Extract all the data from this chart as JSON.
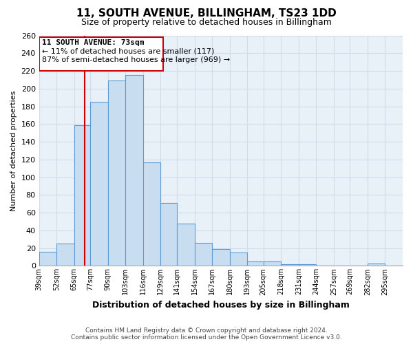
{
  "title": "11, SOUTH AVENUE, BILLINGHAM, TS23 1DD",
  "subtitle": "Size of property relative to detached houses in Billingham",
  "xlabel": "Distribution of detached houses by size in Billingham",
  "ylabel": "Number of detached properties",
  "bin_labels": [
    "39sqm",
    "52sqm",
    "65sqm",
    "77sqm",
    "90sqm",
    "103sqm",
    "116sqm",
    "129sqm",
    "141sqm",
    "154sqm",
    "167sqm",
    "180sqm",
    "193sqm",
    "205sqm",
    "218sqm",
    "231sqm",
    "244sqm",
    "257sqm",
    "269sqm",
    "282sqm",
    "295sqm"
  ],
  "bin_edges": [
    39,
    52,
    65,
    77,
    90,
    103,
    116,
    129,
    141,
    154,
    167,
    180,
    193,
    205,
    218,
    231,
    244,
    257,
    269,
    282,
    295
  ],
  "bar_heights": [
    16,
    25,
    159,
    185,
    209,
    215,
    117,
    71,
    48,
    26,
    19,
    15,
    5,
    5,
    2,
    2,
    0,
    0,
    0,
    3,
    0
  ],
  "bar_color": "#c9ddf0",
  "bar_edgecolor": "#5b9bd5",
  "property_line_x": 73,
  "property_line_color": "#cc0000",
  "annotation_title": "11 SOUTH AVENUE: 73sqm",
  "annotation_line1": "← 11% of detached houses are smaller (117)",
  "annotation_line2": "87% of semi-detached houses are larger (969) →",
  "ylim": [
    0,
    260
  ],
  "yticks": [
    0,
    20,
    40,
    60,
    80,
    100,
    120,
    140,
    160,
    180,
    200,
    220,
    240,
    260
  ],
  "footnote1": "Contains HM Land Registry data © Crown copyright and database right 2024.",
  "footnote2": "Contains public sector information licensed under the Open Government Licence v3.0.",
  "background_color": "#ffffff",
  "grid_color": "#d0dcea"
}
